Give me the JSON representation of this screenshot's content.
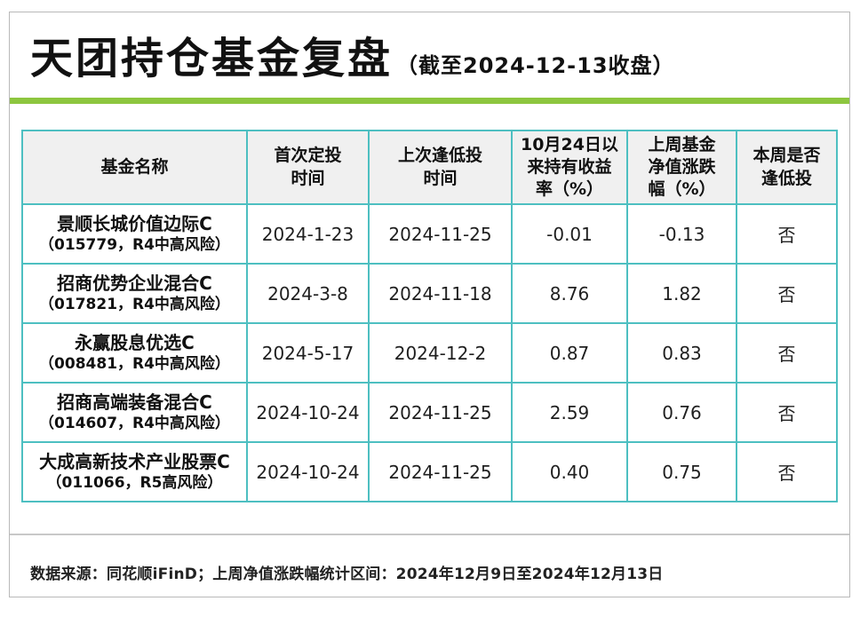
{
  "header": {
    "title": "天团持仓基金复盘",
    "title_suffix": "（截至2024-12-13收盘）"
  },
  "table": {
    "columns": [
      {
        "key": "name",
        "label": "基金名称"
      },
      {
        "key": "first_invest_date",
        "label": "首次定投\n时间"
      },
      {
        "key": "last_dip_date",
        "label": "上次逢低投\n时间"
      },
      {
        "key": "return_since_oct24",
        "label": "10月24日以\n来持有收益\n率（%）"
      },
      {
        "key": "last_week_change",
        "label": "上周基金\n净值涨跌\n幅（%）"
      },
      {
        "key": "dip_this_week",
        "label": "本周是否\n逢低投"
      }
    ],
    "rows": [
      {
        "name": "景顺长城价值边际C",
        "code_risk": "（015779，R4中高风险）",
        "first_invest_date": "2024-1-23",
        "last_dip_date": "2024-11-25",
        "return_since_oct24": "-0.01",
        "last_week_change": "-0.13",
        "dip_this_week": "否"
      },
      {
        "name": "招商优势企业混合C",
        "code_risk": "（017821，R4中高风险）",
        "first_invest_date": "2024-3-8",
        "last_dip_date": "2024-11-18",
        "return_since_oct24": "8.76",
        "last_week_change": "1.82",
        "dip_this_week": "否"
      },
      {
        "name": "永赢股息优选C",
        "code_risk": "（008481，R4中高风险）",
        "first_invest_date": "2024-5-17",
        "last_dip_date": "2024-12-2",
        "return_since_oct24": "0.87",
        "last_week_change": "0.83",
        "dip_this_week": "否"
      },
      {
        "name": "招商高端装备混合C",
        "code_risk": "（014607，R4中高风险）",
        "first_invest_date": "2024-10-24",
        "last_dip_date": "2024-11-25",
        "return_since_oct24": "2.59",
        "last_week_change": "0.76",
        "dip_this_week": "否"
      },
      {
        "name": "大成高新技术产业股票C",
        "code_risk": "（011066，R5高风险）",
        "first_invest_date": "2024-10-24",
        "last_dip_date": "2024-11-25",
        "return_since_oct24": "0.40",
        "last_week_change": "0.75",
        "dip_this_week": "否"
      }
    ]
  },
  "footer": {
    "source_note": "数据来源：同花顺iFinD；上周净值涨跌幅统计区间：2024年12月9日至2024年12月13日"
  },
  "colors": {
    "accent_green": "#8DC63F",
    "table_border_teal": "#4DBFC1",
    "header_cell_bg": "#F0F0F0",
    "frame_border_gray": "#B9B9B9"
  }
}
